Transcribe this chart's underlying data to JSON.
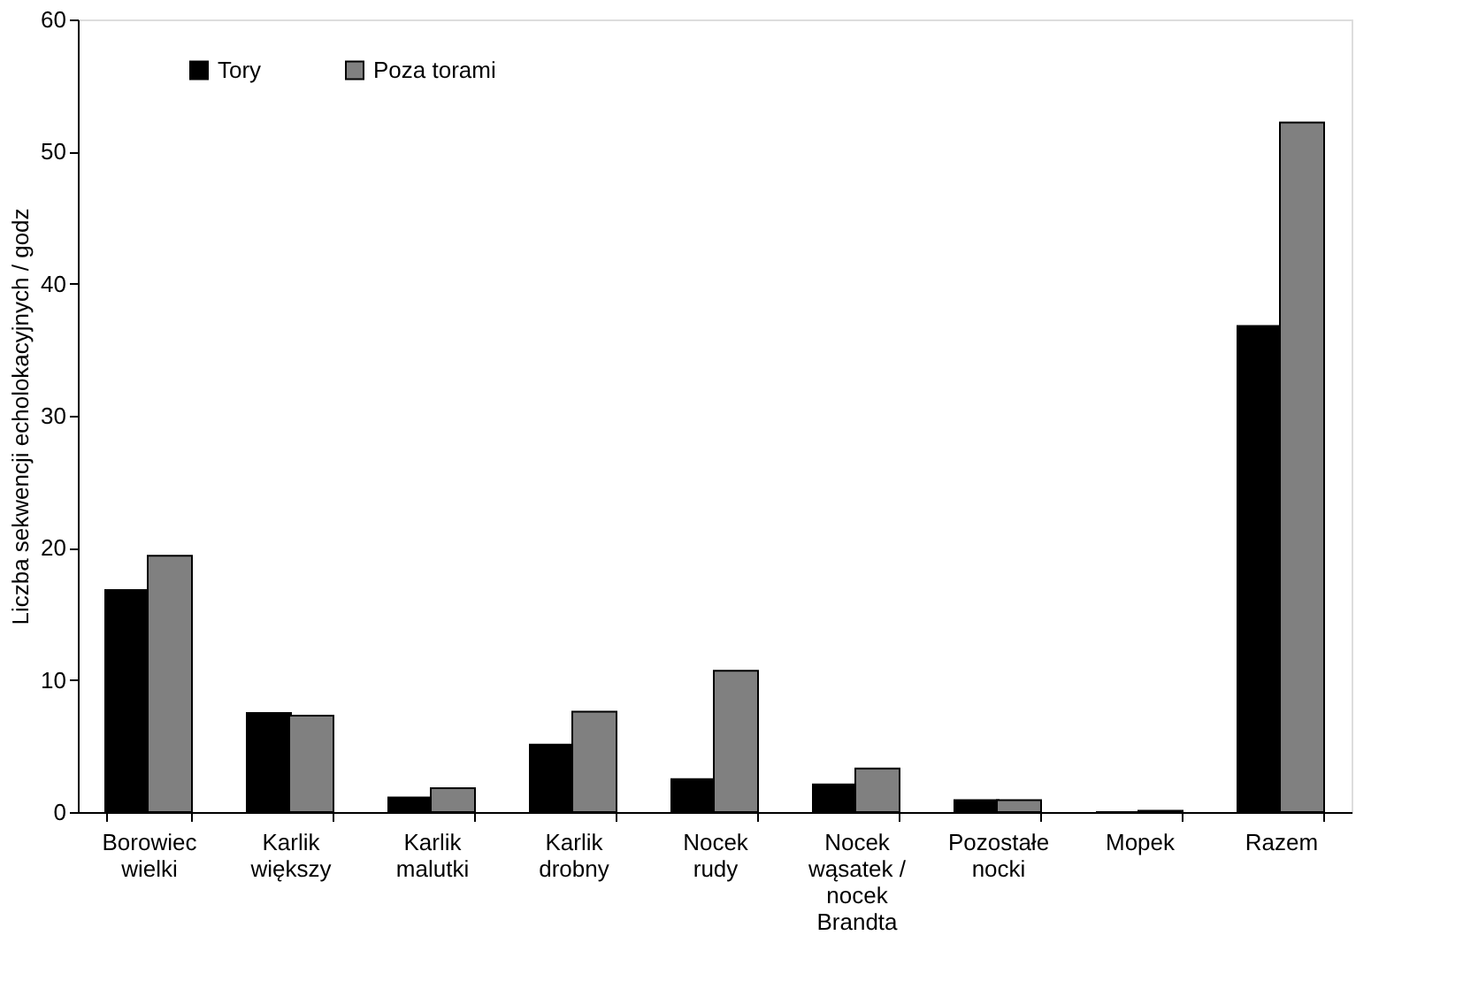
{
  "chart_data": {
    "type": "bar",
    "ylabel": "Liczba sekwencji echolokacyjnych / godz",
    "categories": [
      "Borowiec wielki",
      "Karlik większy",
      "Karlik malutki",
      "Karlik drobny",
      "Nocek rudy",
      "Nocek wąsatek / nocek Brandta",
      "Pozostałe nocki",
      "Mopek",
      "Razem"
    ],
    "series": [
      {
        "name": "Tory",
        "color": "#000000",
        "values": [
          16.8,
          7.5,
          1.1,
          5.1,
          2.5,
          2.1,
          0.9,
          0,
          36.8
        ]
      },
      {
        "name": "Poza torami",
        "color": "#808080",
        "values": [
          19.4,
          7.3,
          1.8,
          7.6,
          10.7,
          3.3,
          0.9,
          0.1,
          52.2
        ]
      }
    ],
    "ylim": [
      0,
      60
    ],
    "yticks": [
      0,
      10,
      20,
      30,
      40,
      50,
      60
    ],
    "grid": false,
    "legend": "top left"
  }
}
